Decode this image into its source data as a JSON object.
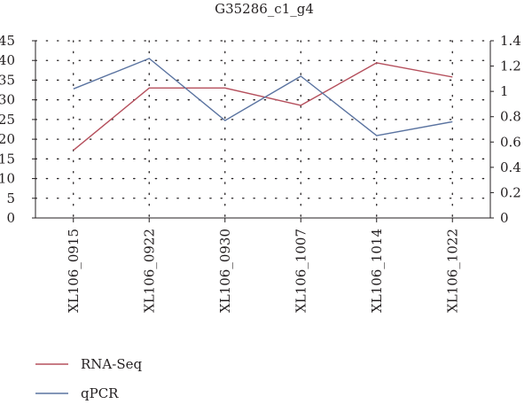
{
  "chart_data": {
    "type": "line",
    "title": "G35286_c1_g4",
    "categories": [
      "XL106_0915",
      "XL106_0922",
      "XL106_0930",
      "XL106_1007",
      "XL106_1014",
      "XL106_1022"
    ],
    "left_axis": {
      "ylim": [
        0,
        45
      ],
      "ticks": [
        "0",
        "5",
        "10",
        "15",
        "20",
        "25",
        "30",
        "35",
        "40",
        "45"
      ]
    },
    "right_axis": {
      "ylim": [
        0,
        1.4
      ],
      "ticks": [
        "0",
        "0.2",
        "0.4",
        "0.6",
        "0.8",
        "1",
        "1.2",
        "1.4"
      ]
    },
    "grid": "dotted",
    "legend_position": "bottom-left",
    "series": [
      {
        "name": "RNA-Seq",
        "axis": "left",
        "color": "#b5505d",
        "values": [
          17.2,
          33.0,
          33.0,
          28.6,
          39.4,
          35.8
        ]
      },
      {
        "name": "qPCR",
        "axis": "right",
        "color": "#5a73a0",
        "values": [
          1.02,
          1.26,
          0.77,
          1.12,
          0.65,
          0.76
        ]
      }
    ]
  }
}
